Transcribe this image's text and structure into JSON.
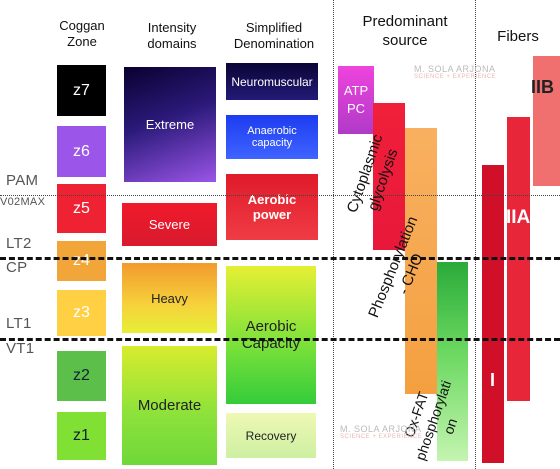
{
  "headers": {
    "coggan": [
      "Coggan",
      "Zone"
    ],
    "intensity": [
      "Intensity",
      "domains"
    ],
    "simplified": [
      "Simplified",
      "Denomination"
    ],
    "source": [
      "Predominant",
      "source"
    ],
    "fibers": "Fibers"
  },
  "threshold_labels": {
    "pam": "PAM",
    "vo2max": "V02MAX",
    "lt2": "LT2",
    "cp": "CP",
    "lt1": "LT1",
    "vt1": "VT1"
  },
  "zones": [
    "z7",
    "z6",
    "z5",
    "z4",
    "z3",
    "z2",
    "z1"
  ],
  "zone_colors": [
    "#000000",
    "#9b55e8",
    "#ee2233",
    "#f2a63a",
    "#ffd044",
    "#5cbf4a",
    "#80e034"
  ],
  "intensity_domains": {
    "extreme": "Extreme",
    "severe": "Severe",
    "heavy": "Heavy",
    "moderate": "Moderate"
  },
  "simplified": {
    "neuromuscular": "Neuromuscular",
    "anaerobic": [
      "Anaerobic",
      "capacity"
    ],
    "aerobic_power": [
      "Aerobic",
      "power"
    ],
    "aerobic_capacity": [
      "Aerobic",
      "Capacity"
    ],
    "recovery": "Recovery"
  },
  "sources": {
    "atp": [
      "ATP",
      "PC"
    ],
    "glycolysis": [
      "Cytoplasmic",
      "glycolysis"
    ],
    "phosphorylation_cho": [
      "Phosphorylation",
      "- CHO"
    ],
    "ox_fat": [
      "Ox-FAT",
      "phosphorylati",
      "on"
    ]
  },
  "fibers": {
    "iib": "IIB",
    "iia": "IIA",
    "i": "I"
  },
  "watermark": {
    "name": "M. SOLA ARJONA",
    "tagline": "SCIENCE + EXPERIENCE"
  }
}
